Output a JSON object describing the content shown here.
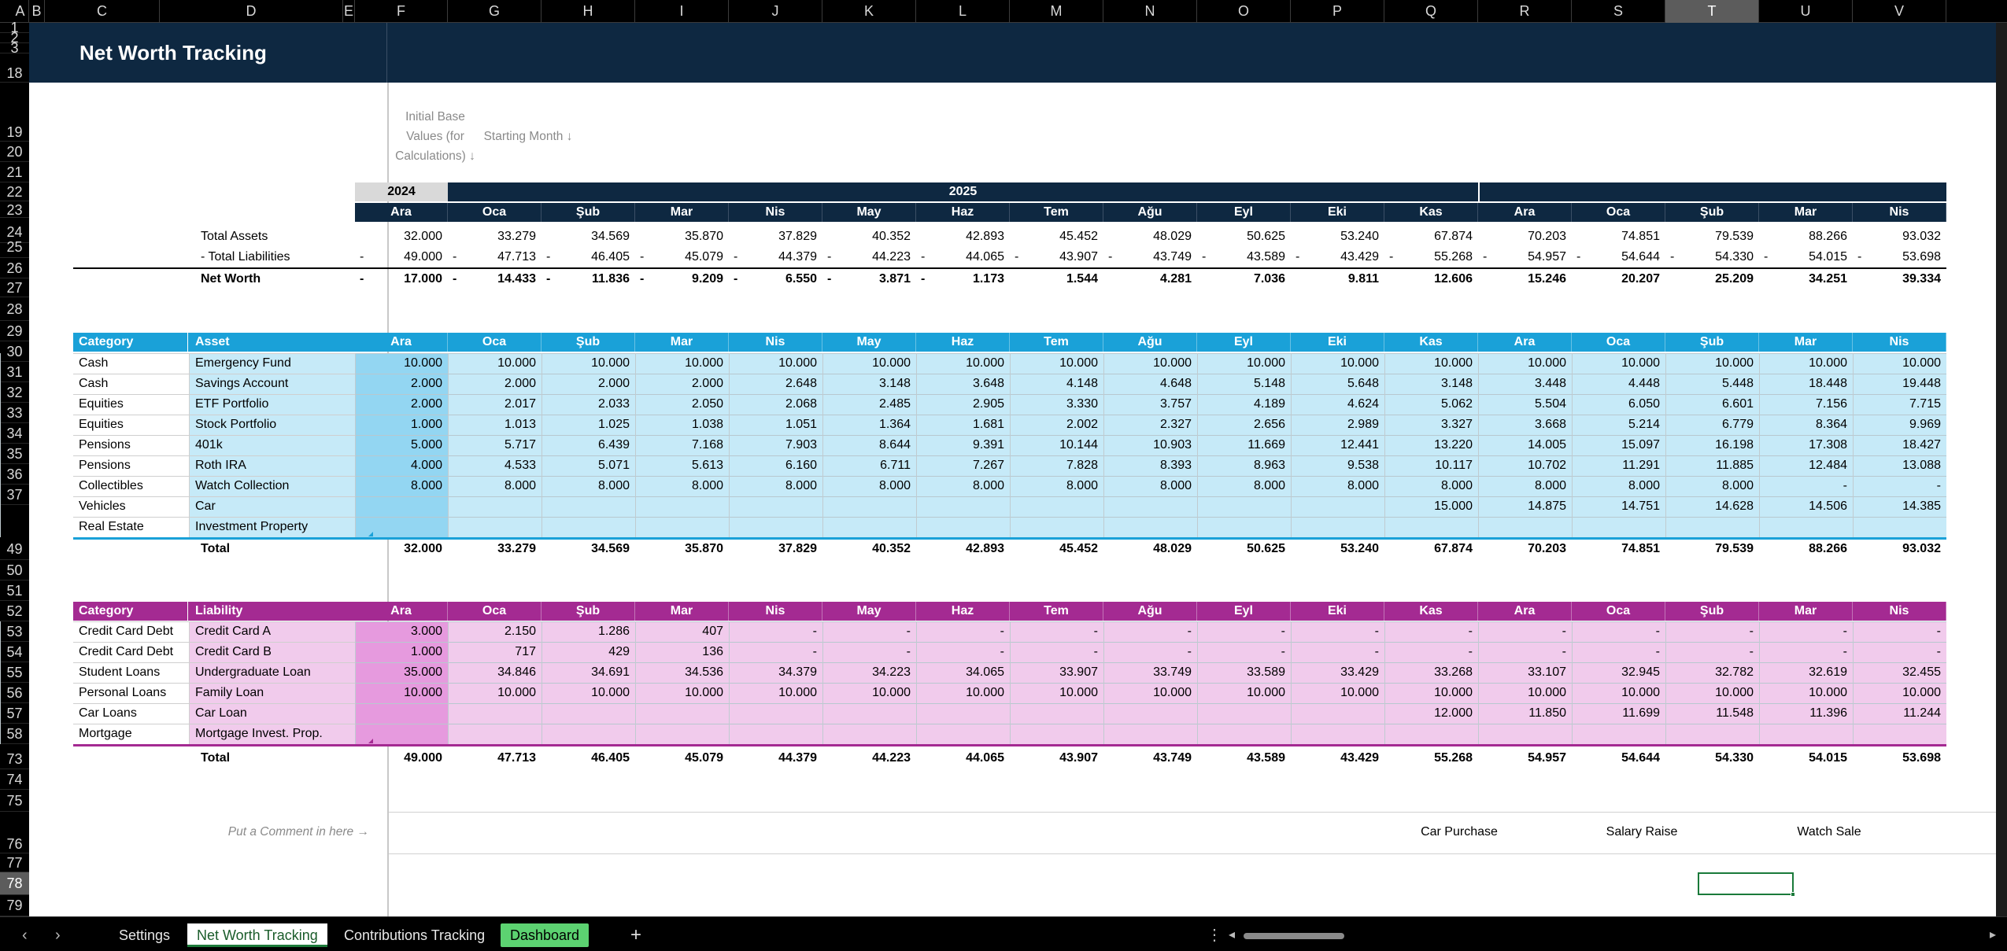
{
  "columns": [
    "A",
    "B",
    "C",
    "D",
    "E",
    "F",
    "G",
    "H",
    "I",
    "J",
    "K",
    "L",
    "M",
    "N",
    "O",
    "P",
    "Q",
    "R",
    "S",
    "T",
    "U",
    "V"
  ],
  "selected_column": "T",
  "rows": [
    "1",
    "2",
    "3",
    "18",
    "19",
    "20",
    "21",
    "22",
    "23",
    "24",
    "25",
    "26",
    "27",
    "28",
    "29",
    "30",
    "31",
    "32",
    "33",
    "34",
    "35",
    "36",
    "37",
    "49",
    "50",
    "51",
    "52",
    "53",
    "54",
    "55",
    "56",
    "57",
    "58",
    "73",
    "74",
    "75",
    "76",
    "77",
    "78",
    "79"
  ],
  "selected_row": "78",
  "title": "Net Worth Tracking",
  "headers": {
    "initial_base": "Initial Base Values (for Calculations) ↓",
    "starting_month": "Starting Month ↓",
    "year_2024": "2024",
    "year_2025": "2025"
  },
  "months": [
    "Ara",
    "Oca",
    "Şub",
    "Mar",
    "Nis",
    "May",
    "Haz",
    "Tem",
    "Ağu",
    "Eyl",
    "Eki",
    "Kas",
    "Ara",
    "Oca",
    "Şub",
    "Mar",
    "Nis"
  ],
  "summary": {
    "total_assets_label": "Total Assets",
    "total_liabilities_label": "- Total Liabilities",
    "net_worth_label": "Net Worth",
    "total_assets": [
      "32.000",
      "33.279",
      "34.569",
      "35.870",
      "37.829",
      "40.352",
      "42.893",
      "45.452",
      "48.029",
      "50.625",
      "53.240",
      "67.874",
      "70.203",
      "74.851",
      "79.539",
      "88.266",
      "93.032"
    ],
    "total_liabilities": [
      "49.000",
      "47.713",
      "46.405",
      "45.079",
      "44.379",
      "44.223",
      "44.065",
      "43.907",
      "43.749",
      "43.589",
      "43.429",
      "55.268",
      "54.957",
      "54.644",
      "54.330",
      "54.015",
      "53.698"
    ],
    "net_worth": [
      "17.000",
      "14.433",
      "11.836",
      "9.209",
      "6.550",
      "3.871",
      "1.173",
      "1.544",
      "4.281",
      "7.036",
      "9.811",
      "12.606",
      "15.246",
      "20.207",
      "25.209",
      "34.251",
      "39.334"
    ],
    "net_worth_negative": [
      true,
      true,
      true,
      true,
      true,
      true,
      true,
      false,
      false,
      false,
      false,
      false,
      false,
      false,
      false,
      false,
      false
    ],
    "dash": "-"
  },
  "assets": {
    "category_header": "Category",
    "name_header": "Asset",
    "total_label": "Total",
    "rows": [
      {
        "category": "Cash",
        "name": "Emergency Fund",
        "values": [
          "10.000",
          "10.000",
          "10.000",
          "10.000",
          "10.000",
          "10.000",
          "10.000",
          "10.000",
          "10.000",
          "10.000",
          "10.000",
          "10.000",
          "10.000",
          "10.000",
          "10.000",
          "10.000",
          "10.000"
        ]
      },
      {
        "category": "Cash",
        "name": "Savings Account",
        "values": [
          "2.000",
          "2.000",
          "2.000",
          "2.000",
          "2.648",
          "3.148",
          "3.648",
          "4.148",
          "4.648",
          "5.148",
          "5.648",
          "3.148",
          "3.448",
          "4.448",
          "5.448",
          "18.448",
          "19.448"
        ]
      },
      {
        "category": "Equities",
        "name": "ETF Portfolio",
        "values": [
          "2.000",
          "2.017",
          "2.033",
          "2.050",
          "2.068",
          "2.485",
          "2.905",
          "3.330",
          "3.757",
          "4.189",
          "4.624",
          "5.062",
          "5.504",
          "6.050",
          "6.601",
          "7.156",
          "7.715"
        ]
      },
      {
        "category": "Equities",
        "name": "Stock Portfolio",
        "values": [
          "1.000",
          "1.013",
          "1.025",
          "1.038",
          "1.051",
          "1.364",
          "1.681",
          "2.002",
          "2.327",
          "2.656",
          "2.989",
          "3.327",
          "3.668",
          "5.214",
          "6.779",
          "8.364",
          "9.969"
        ]
      },
      {
        "category": "Pensions",
        "name": "401k",
        "values": [
          "5.000",
          "5.717",
          "6.439",
          "7.168",
          "7.903",
          "8.644",
          "9.391",
          "10.144",
          "10.903",
          "11.669",
          "12.441",
          "13.220",
          "14.005",
          "15.097",
          "16.198",
          "17.308",
          "18.427"
        ]
      },
      {
        "category": "Pensions",
        "name": "Roth IRA",
        "values": [
          "4.000",
          "4.533",
          "5.071",
          "5.613",
          "6.160",
          "6.711",
          "7.267",
          "7.828",
          "8.393",
          "8.963",
          "9.538",
          "10.117",
          "10.702",
          "11.291",
          "11.885",
          "12.484",
          "13.088"
        ]
      },
      {
        "category": "Collectibles",
        "name": "Watch Collection",
        "values": [
          "8.000",
          "8.000",
          "8.000",
          "8.000",
          "8.000",
          "8.000",
          "8.000",
          "8.000",
          "8.000",
          "8.000",
          "8.000",
          "8.000",
          "8.000",
          "8.000",
          "8.000",
          "-",
          "-"
        ]
      },
      {
        "category": "Vehicles",
        "name": "Car",
        "values": [
          "",
          "",
          "",
          "",
          "",
          "",
          "",
          "",
          "",
          "",
          "",
          "15.000",
          "14.875",
          "14.751",
          "14.628",
          "14.506",
          "14.385"
        ]
      },
      {
        "category": "Real Estate",
        "name": "Investment Property",
        "values": [
          "",
          "",
          "",
          "",
          "",
          "",
          "",
          "",
          "",
          "",
          "",
          "",
          "",
          "",
          "",
          "",
          ""
        ]
      }
    ],
    "totals": [
      "32.000",
      "33.279",
      "34.569",
      "35.870",
      "37.829",
      "40.352",
      "42.893",
      "45.452",
      "48.029",
      "50.625",
      "53.240",
      "67.874",
      "70.203",
      "74.851",
      "79.539",
      "88.266",
      "93.032"
    ]
  },
  "liabilities": {
    "category_header": "Category",
    "name_header": "Liability",
    "total_label": "Total",
    "rows": [
      {
        "category": "Credit Card Debt",
        "name": "Credit Card A",
        "values": [
          "3.000",
          "2.150",
          "1.286",
          "407",
          "-",
          "-",
          "-",
          "-",
          "-",
          "-",
          "-",
          "-",
          "-",
          "-",
          "-",
          "-",
          "-"
        ]
      },
      {
        "category": "Credit Card Debt",
        "name": "Credit Card B",
        "values": [
          "1.000",
          "717",
          "429",
          "136",
          "-",
          "-",
          "-",
          "-",
          "-",
          "-",
          "-",
          "-",
          "-",
          "-",
          "-",
          "-",
          "-"
        ]
      },
      {
        "category": "Student Loans",
        "name": "Undergraduate Loan",
        "values": [
          "35.000",
          "34.846",
          "34.691",
          "34.536",
          "34.379",
          "34.223",
          "34.065",
          "33.907",
          "33.749",
          "33.589",
          "33.429",
          "33.268",
          "33.107",
          "32.945",
          "32.782",
          "32.619",
          "32.455"
        ]
      },
      {
        "category": "Personal Loans",
        "name": "Family Loan",
        "values": [
          "10.000",
          "10.000",
          "10.000",
          "10.000",
          "10.000",
          "10.000",
          "10.000",
          "10.000",
          "10.000",
          "10.000",
          "10.000",
          "10.000",
          "10.000",
          "10.000",
          "10.000",
          "10.000",
          "10.000"
        ]
      },
      {
        "category": "Car Loans",
        "name": "Car Loan",
        "values": [
          "",
          "",
          "",
          "",
          "",
          "",
          "",
          "",
          "",
          "",
          "",
          "12.000",
          "11.850",
          "11.699",
          "11.548",
          "11.396",
          "11.244"
        ]
      },
      {
        "category": "Mortgage",
        "name": "Mortgage Invest. Prop.",
        "values": [
          "",
          "",
          "",
          "",
          "",
          "",
          "",
          "",
          "",
          "",
          "",
          "",
          "",
          "",
          "",
          "",
          ""
        ]
      }
    ],
    "totals": [
      "49.000",
      "47.713",
      "46.405",
      "45.079",
      "44.379",
      "44.223",
      "44.065",
      "43.907",
      "43.749",
      "43.589",
      "43.429",
      "55.268",
      "54.957",
      "54.644",
      "54.330",
      "54.015",
      "53.698"
    ]
  },
  "comments": {
    "prompt": "Put a Comment in here →",
    "car_purchase": "Car Purchase",
    "salary_raise": "Salary Raise",
    "watch_sale": "Watch Sale"
  },
  "tabs": {
    "prev": "‹",
    "next": "›",
    "settings": "Settings",
    "net_worth": "Net Worth Tracking",
    "contributions": "Contributions Tracking",
    "dashboard": "Dashboard",
    "add": "+",
    "more": "⋮",
    "scroll_left": "◂",
    "scroll_right": "▸"
  },
  "colors": {
    "navy": "#0e2841",
    "asset_header": "#1aa1d8",
    "asset_fill": "#c6eaf8",
    "asset_base": "#93d6f2",
    "liab_header": "#a42a92",
    "liab_fill": "#f1cbec",
    "liab_base": "#e69ade"
  }
}
